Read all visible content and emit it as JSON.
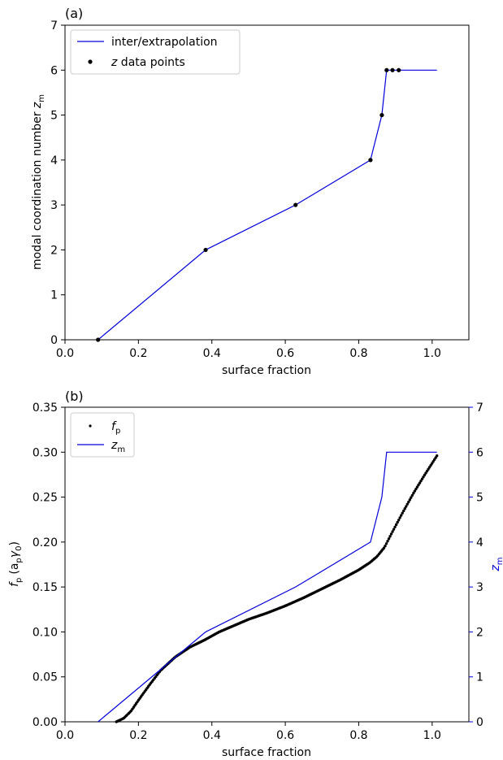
{
  "chart_data": [
    {
      "panel_label": "(a)",
      "type": "line",
      "xlabel": "surface fraction",
      "ylabel_main": "modal coordination number ",
      "ylabel_var": "z",
      "ylabel_sub": "m",
      "xlim": [
        0.0,
        1.1
      ],
      "ylim": [
        0,
        7
      ],
      "xticks": [
        "0.0",
        "0.2",
        "0.4",
        "0.6",
        "0.8",
        "1.0"
      ],
      "yticks": [
        "0",
        "1",
        "2",
        "3",
        "4",
        "5",
        "6",
        "7"
      ],
      "legend": {
        "position": "upper-left",
        "entries": [
          "inter/extrapolation",
          "z data points"
        ]
      },
      "series": [
        {
          "name": "inter/extrapolation",
          "kind": "line",
          "color": "#0000dd",
          "x": [
            0.09,
            0.383,
            0.628,
            0.832,
            0.863,
            0.876,
            0.892,
            0.909,
            1.013
          ],
          "y": [
            0,
            2,
            3,
            4,
            5,
            6,
            6,
            6,
            6
          ]
        },
        {
          "name": "z data points",
          "kind": "scatter",
          "color": "#000000",
          "x": [
            0.09,
            0.383,
            0.628,
            0.832,
            0.863,
            0.876,
            0.892,
            0.909
          ],
          "y": [
            0,
            2,
            3,
            4,
            5,
            6,
            6,
            6
          ]
        }
      ]
    },
    {
      "panel_label": "(b)",
      "type": "line",
      "xlabel": "surface fraction",
      "ylabel_left_var": "f",
      "ylabel_left_sub": "p",
      "ylabel_left_rest": "(a",
      "ylabel_left_rest_sub": "p",
      "ylabel_left_gamma": "γ",
      "ylabel_left_gamma_sub": "0",
      "ylabel_right_var": "z",
      "ylabel_right_sub": "m",
      "xlim": [
        0.0,
        1.1
      ],
      "ylim_left": [
        0,
        0.35
      ],
      "ylim_right": [
        0,
        7
      ],
      "xticks": [
        "0.0",
        "0.2",
        "0.4",
        "0.6",
        "0.8",
        "1.0"
      ],
      "yticks_left": [
        "0.00",
        "0.05",
        "0.10",
        "0.15",
        "0.20",
        "0.25",
        "0.30",
        "0.35"
      ],
      "yticks_right": [
        "0",
        "1",
        "2",
        "3",
        "4",
        "5",
        "6",
        "7"
      ],
      "right_axis_color": "#0000dd",
      "legend": {
        "position": "upper-left",
        "entries": [
          "f_p",
          "z_m"
        ]
      },
      "series": [
        {
          "name": "f_p",
          "kind": "scatter-dense",
          "axis": "left",
          "color": "#000000",
          "x": [
            0.14,
            0.16,
            0.18,
            0.2,
            0.23,
            0.26,
            0.3,
            0.34,
            0.38,
            0.42,
            0.46,
            0.5,
            0.55,
            0.6,
            0.65,
            0.7,
            0.75,
            0.8,
            0.83,
            0.85,
            0.87,
            0.89,
            0.92,
            0.95,
            0.98,
            1.013
          ],
          "y": [
            0.0,
            0.004,
            0.012,
            0.024,
            0.041,
            0.057,
            0.072,
            0.083,
            0.091,
            0.1,
            0.107,
            0.114,
            0.121,
            0.129,
            0.138,
            0.148,
            0.158,
            0.169,
            0.177,
            0.184,
            0.194,
            0.21,
            0.233,
            0.255,
            0.275,
            0.296
          ]
        },
        {
          "name": "z_m",
          "kind": "line",
          "axis": "right",
          "color": "#0000dd",
          "x": [
            0.09,
            0.383,
            0.628,
            0.832,
            0.863,
            0.876,
            1.013
          ],
          "y": [
            0,
            2,
            3,
            4,
            5,
            6,
            6
          ]
        }
      ]
    }
  ]
}
